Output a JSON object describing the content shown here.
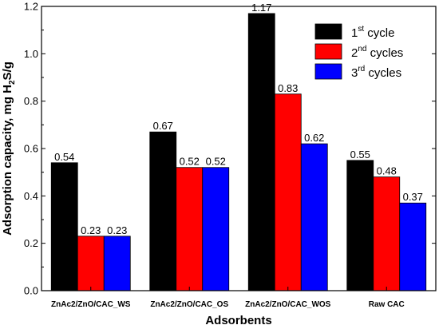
{
  "chart_data": {
    "type": "bar",
    "categories": [
      "ZnAc2/ZnO/CAC_WS",
      "ZnAc2/ZnO/CAC_OS",
      "ZnAc2/ZnO/CAC_WOS",
      "Raw CAC"
    ],
    "series": [
      {
        "name": "1st cycle",
        "name_base": "1",
        "name_sup": "st",
        "name_rest": " cycle",
        "color": "#000000",
        "values": [
          0.54,
          0.67,
          1.17,
          0.55
        ],
        "labels": [
          "0.54",
          "0.67",
          "1.17",
          "0.55"
        ]
      },
      {
        "name": "2nd cycles",
        "name_base": "2",
        "name_sup": "nd",
        "name_rest": " cycles",
        "color": "#ff0000",
        "values": [
          0.23,
          0.52,
          0.83,
          0.48
        ],
        "labels": [
          "0.23",
          "0.52",
          "0.83",
          "0.48"
        ]
      },
      {
        "name": "3rd cycles",
        "name_base": "3",
        "name_sup": "rd",
        "name_rest": " cycles",
        "color": "#0000ff",
        "values": [
          0.23,
          0.52,
          0.62,
          0.37
        ],
        "labels": [
          "0.23",
          "0.52",
          "0.62",
          "0.37"
        ]
      }
    ],
    "xlabel": "Adsorbents",
    "ylabel": "Adsorption capacity, mg H2S/g",
    "ylabel_parts": {
      "pre": "Adsorption capacity, mg H",
      "sub": "2",
      "post": "S/g"
    },
    "ylim": [
      0.0,
      1.2
    ],
    "yticks": [
      "0.0",
      "0.2",
      "0.4",
      "0.6",
      "0.8",
      "1.0",
      "1.2"
    ],
    "legend_position": "top-right",
    "grid": false
  }
}
